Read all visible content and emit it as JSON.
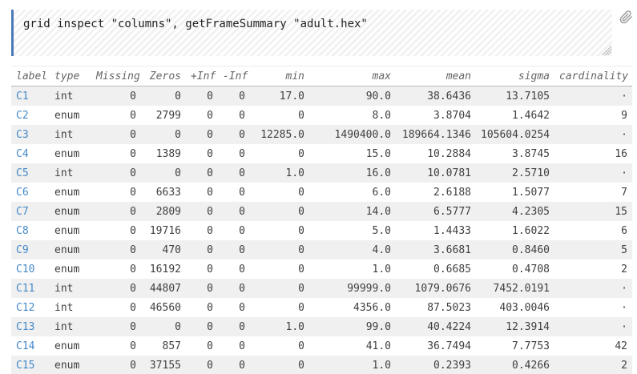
{
  "cell": {
    "command": "grid inspect \"columns\", getFrameSummary \"adult.hex\"",
    "attachment_icon": "paperclip-icon",
    "resize_icon": "resize-grip-icon"
  },
  "colors": {
    "accent_blue": "#4a7ab8",
    "link_blue": "#4589c8",
    "row_stripe_gray": "#f0f0f0",
    "header_text": "#666666",
    "cell_text": "#404040",
    "icon_gray": "#9a9a9a"
  },
  "table": {
    "columns": [
      "label",
      "type",
      "Missing",
      "Zeros",
      "+Inf",
      "-Inf",
      "min",
      "max",
      "mean",
      "sigma",
      "cardinality"
    ],
    "rows": [
      [
        "C1",
        "int",
        "0",
        "0",
        "0",
        "0",
        "17.0",
        "90.0",
        "38.6436",
        "13.7105",
        "·"
      ],
      [
        "C2",
        "enum",
        "0",
        "2799",
        "0",
        "0",
        "0",
        "8.0",
        "3.8704",
        "1.4642",
        "9"
      ],
      [
        "C3",
        "int",
        "0",
        "0",
        "0",
        "0",
        "12285.0",
        "1490400.0",
        "189664.1346",
        "105604.0254",
        "·"
      ],
      [
        "C4",
        "enum",
        "0",
        "1389",
        "0",
        "0",
        "0",
        "15.0",
        "10.2884",
        "3.8745",
        "16"
      ],
      [
        "C5",
        "int",
        "0",
        "0",
        "0",
        "0",
        "1.0",
        "16.0",
        "10.0781",
        "2.5710",
        "·"
      ],
      [
        "C6",
        "enum",
        "0",
        "6633",
        "0",
        "0",
        "0",
        "6.0",
        "2.6188",
        "1.5077",
        "7"
      ],
      [
        "C7",
        "enum",
        "0",
        "2809",
        "0",
        "0",
        "0",
        "14.0",
        "6.5777",
        "4.2305",
        "15"
      ],
      [
        "C8",
        "enum",
        "0",
        "19716",
        "0",
        "0",
        "0",
        "5.0",
        "1.4433",
        "1.6022",
        "6"
      ],
      [
        "C9",
        "enum",
        "0",
        "470",
        "0",
        "0",
        "0",
        "4.0",
        "3.6681",
        "0.8460",
        "5"
      ],
      [
        "C10",
        "enum",
        "0",
        "16192",
        "0",
        "0",
        "0",
        "1.0",
        "0.6685",
        "0.4708",
        "2"
      ],
      [
        "C11",
        "int",
        "0",
        "44807",
        "0",
        "0",
        "0",
        "99999.0",
        "1079.0676",
        "7452.0191",
        "·"
      ],
      [
        "C12",
        "int",
        "0",
        "46560",
        "0",
        "0",
        "0",
        "4356.0",
        "87.5023",
        "403.0046",
        "·"
      ],
      [
        "C13",
        "int",
        "0",
        "0",
        "0",
        "0",
        "1.0",
        "99.0",
        "40.4224",
        "12.3914",
        "·"
      ],
      [
        "C14",
        "enum",
        "0",
        "857",
        "0",
        "0",
        "0",
        "41.0",
        "36.7494",
        "7.7753",
        "42"
      ],
      [
        "C15",
        "enum",
        "0",
        "37155",
        "0",
        "0",
        "0",
        "1.0",
        "0.2393",
        "0.4266",
        "2"
      ]
    ]
  }
}
